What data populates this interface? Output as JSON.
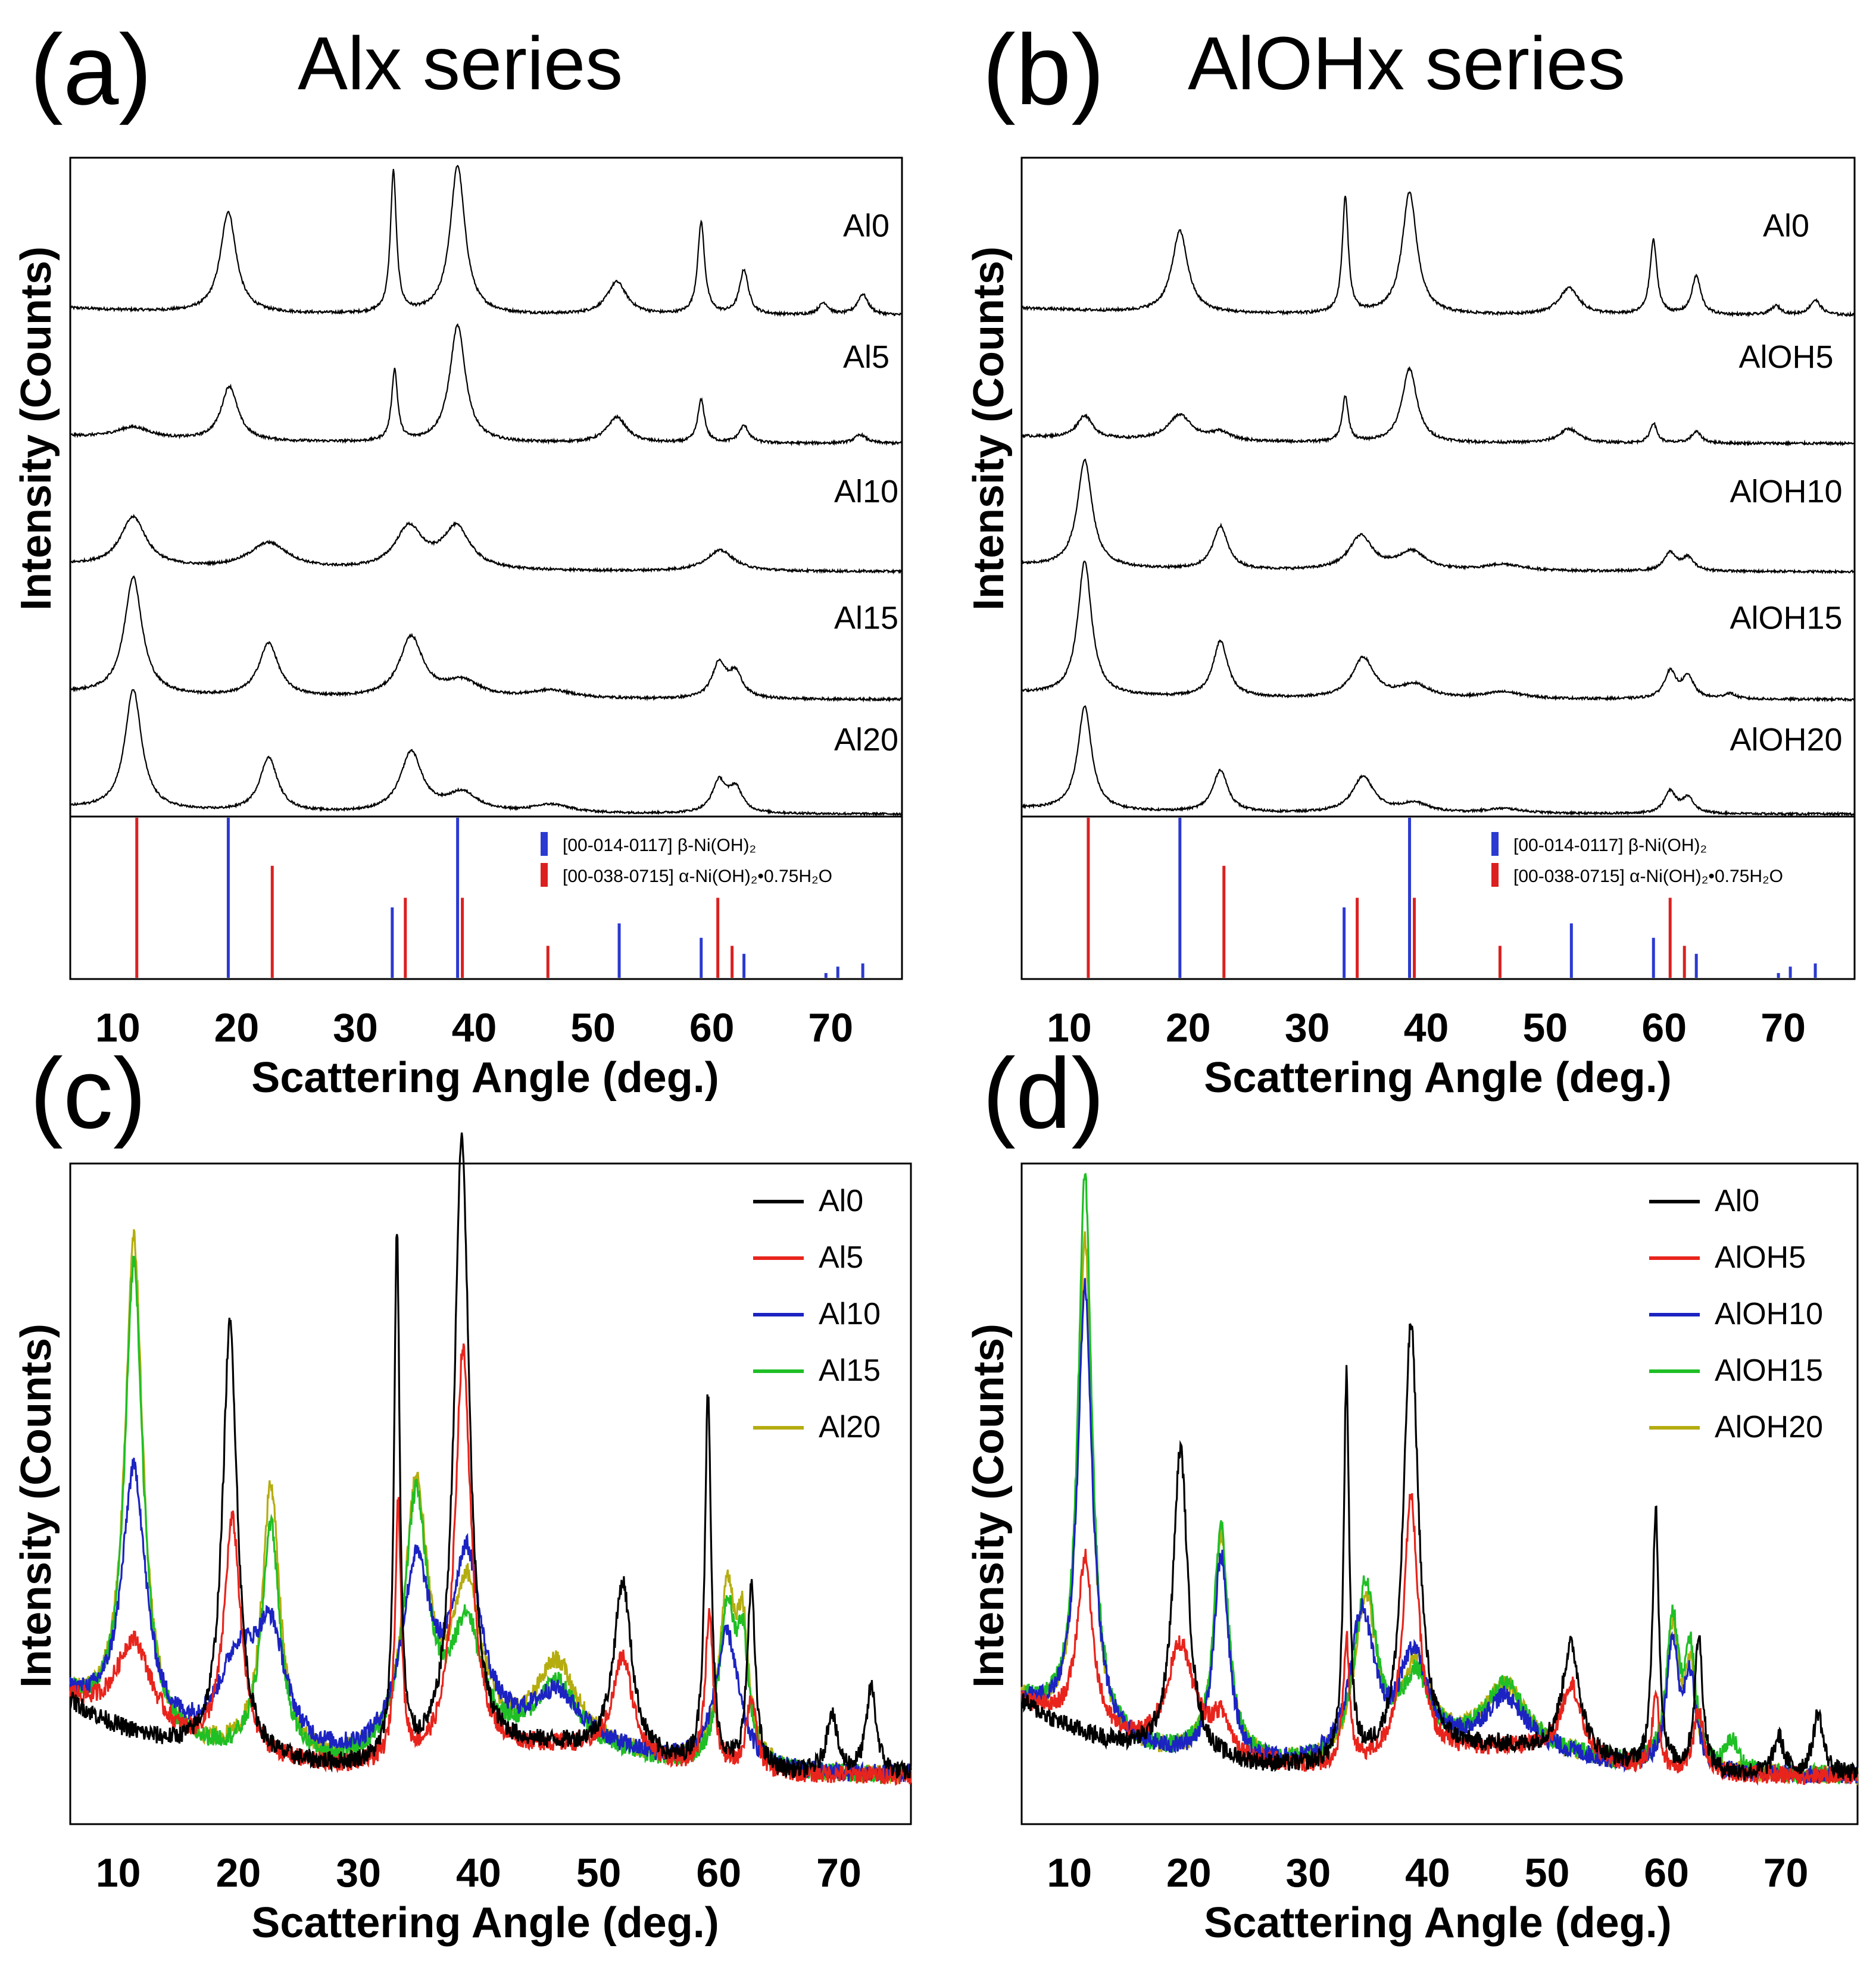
{
  "figure": {
    "panels": [
      {
        "id": "a",
        "letter": "(a)",
        "title": "Alx series"
      },
      {
        "id": "b",
        "letter": "(b)",
        "title": "AlOHx series"
      },
      {
        "id": "c",
        "letter": "(c)",
        "title": ""
      },
      {
        "id": "d",
        "letter": "(d)",
        "title": ""
      }
    ],
    "x_axis_label": "Scattering Angle (deg.)",
    "y_axis_label": "Intensity (Counts)",
    "x_ticks": [
      10,
      20,
      30,
      40,
      50,
      60,
      70
    ],
    "x_range": [
      6,
      76
    ],
    "reference_legend": {
      "beta": "[00-014-0117] β-Ni(OH)₂",
      "alpha": "[00-038-0715] α-Ni(OH)₂•0.75H₂O"
    },
    "colors": {
      "black": "#000000",
      "red": "#e8241c",
      "blue": "#1c23c2",
      "green": "#1fbf25",
      "olive": "#b5ad10",
      "ref_beta": "#2b3ad1",
      "ref_alpha": "#dc2020"
    }
  },
  "chart_data": [
    {
      "id": "a",
      "type": "line",
      "title": "Alx series",
      "xlabel": "Scattering Angle (deg.)",
      "ylabel": "Intensity (Counts)",
      "xlim": [
        6,
        76
      ],
      "layout": "stacked",
      "series": [
        {
          "name": "Al0",
          "baseline": 0.02,
          "peaks": [
            [
              19.3,
              0.68,
              0.8
            ],
            [
              33.2,
              0.95,
              0.3
            ],
            [
              38.6,
              1.0,
              0.75
            ],
            [
              52.0,
              0.22,
              1.0
            ],
            [
              59.1,
              0.62,
              0.35
            ],
            [
              62.7,
              0.3,
              0.45
            ],
            [
              69.4,
              0.08,
              0.5
            ],
            [
              72.7,
              0.14,
              0.55
            ]
          ]
        },
        {
          "name": "Al5",
          "baseline": 0.02,
          "peaks": [
            [
              11.3,
              0.08,
              1.8
            ],
            [
              19.4,
              0.38,
              0.85
            ],
            [
              33.3,
              0.5,
              0.3
            ],
            [
              38.6,
              0.82,
              0.8
            ],
            [
              52.0,
              0.18,
              1.0
            ],
            [
              59.1,
              0.3,
              0.35
            ],
            [
              62.7,
              0.12,
              0.5
            ],
            [
              72.5,
              0.06,
              0.6
            ]
          ]
        },
        {
          "name": "Al10",
          "baseline": 0.02,
          "peaks": [
            [
              11.3,
              0.38,
              1.3
            ],
            [
              22.7,
              0.2,
              2.0
            ],
            [
              34.5,
              0.32,
              1.4
            ],
            [
              38.5,
              0.32,
              1.4
            ],
            [
              60.7,
              0.16,
              1.4
            ]
          ]
        },
        {
          "name": "Al15",
          "baseline": 0.02,
          "peaks": [
            [
              11.3,
              0.88,
              0.9
            ],
            [
              22.7,
              0.4,
              1.0
            ],
            [
              34.7,
              0.45,
              1.2
            ],
            [
              39.0,
              0.12,
              1.8
            ],
            [
              46.5,
              0.06,
              2.2
            ],
            [
              60.6,
              0.26,
              0.7
            ],
            [
              62.0,
              0.18,
              0.7
            ]
          ]
        },
        {
          "name": "Al20",
          "baseline": 0.02,
          "peaks": [
            [
              11.3,
              1.0,
              0.85
            ],
            [
              22.7,
              0.45,
              0.9
            ],
            [
              34.7,
              0.5,
              1.1
            ],
            [
              39.0,
              0.16,
              1.6
            ],
            [
              46.5,
              0.07,
              2.0
            ],
            [
              60.6,
              0.26,
              0.7
            ],
            [
              62.0,
              0.2,
              0.7
            ]
          ]
        }
      ],
      "reference_lines": {
        "beta": [
          [
            19.3,
            1.0
          ],
          [
            33.1,
            0.44
          ],
          [
            38.6,
            1.0
          ],
          [
            52.2,
            0.34
          ],
          [
            59.1,
            0.25
          ],
          [
            62.7,
            0.15
          ],
          [
            69.6,
            0.03
          ],
          [
            70.6,
            0.07
          ],
          [
            72.7,
            0.09
          ]
        ],
        "alpha": [
          [
            11.4,
            1.0
          ],
          [
            22.8,
            0.7
          ],
          [
            34.0,
            0.5
          ],
          [
            38.8,
            0.5
          ],
          [
            46.0,
            0.2
          ],
          [
            60.3,
            0.5
          ],
          [
            61.5,
            0.2
          ]
        ]
      }
    },
    {
      "id": "b",
      "type": "line",
      "title": "AlOHx series",
      "xlabel": "Scattering Angle (deg.)",
      "ylabel": "Intensity (Counts)",
      "xlim": [
        6,
        76
      ],
      "layout": "stacked",
      "series": [
        {
          "name": "Al0",
          "baseline": 0.02,
          "peaks": [
            [
              19.3,
              0.55,
              0.8
            ],
            [
              33.2,
              0.78,
              0.3
            ],
            [
              38.6,
              0.82,
              0.75
            ],
            [
              52.0,
              0.18,
              1.0
            ],
            [
              59.1,
              0.5,
              0.35
            ],
            [
              62.7,
              0.26,
              0.45
            ],
            [
              69.4,
              0.06,
              0.5
            ],
            [
              72.7,
              0.1,
              0.55
            ]
          ]
        },
        {
          "name": "AlOH5",
          "baseline": 0.02,
          "peaks": [
            [
              11.3,
              0.16,
              0.8
            ],
            [
              19.3,
              0.18,
              1.2
            ],
            [
              22.7,
              0.06,
              1.0
            ],
            [
              33.2,
              0.32,
              0.3
            ],
            [
              38.6,
              0.52,
              0.75
            ],
            [
              52.0,
              0.1,
              1.0
            ],
            [
              59.1,
              0.14,
              0.35
            ],
            [
              62.7,
              0.08,
              0.5
            ]
          ]
        },
        {
          "name": "AlOH10",
          "baseline": 0.02,
          "peaks": [
            [
              11.3,
              0.82,
              0.75
            ],
            [
              22.7,
              0.33,
              0.75
            ],
            [
              34.5,
              0.26,
              1.2
            ],
            [
              38.8,
              0.14,
              1.4
            ],
            [
              46.5,
              0.05,
              2.0
            ],
            [
              60.5,
              0.14,
              0.6
            ],
            [
              62.0,
              0.1,
              0.6
            ]
          ]
        },
        {
          "name": "AlOH15",
          "baseline": 0.02,
          "peaks": [
            [
              11.3,
              1.0,
              0.7
            ],
            [
              22.7,
              0.42,
              0.75
            ],
            [
              34.7,
              0.3,
              1.1
            ],
            [
              39.0,
              0.1,
              1.5
            ],
            [
              46.5,
              0.05,
              2.0
            ],
            [
              60.5,
              0.2,
              0.6
            ],
            [
              62.0,
              0.16,
              0.6
            ],
            [
              65.5,
              0.04,
              0.6
            ]
          ]
        },
        {
          "name": "AlOH20",
          "baseline": 0.02,
          "peaks": [
            [
              11.3,
              0.86,
              0.7
            ],
            [
              22.7,
              0.35,
              0.75
            ],
            [
              34.7,
              0.3,
              1.1
            ],
            [
              39.0,
              0.08,
              1.5
            ],
            [
              46.5,
              0.04,
              2.0
            ],
            [
              60.5,
              0.18,
              0.6
            ],
            [
              62.0,
              0.13,
              0.6
            ]
          ]
        }
      ],
      "reference_lines": {
        "beta": [
          [
            19.3,
            1.0
          ],
          [
            33.1,
            0.44
          ],
          [
            38.6,
            1.0
          ],
          [
            52.2,
            0.34
          ],
          [
            59.1,
            0.25
          ],
          [
            62.7,
            0.15
          ],
          [
            69.6,
            0.03
          ],
          [
            70.6,
            0.07
          ],
          [
            72.7,
            0.09
          ]
        ],
        "alpha": [
          [
            11.4,
            1.0
          ],
          [
            22.8,
            0.7
          ],
          [
            34.0,
            0.5
          ],
          [
            38.8,
            0.5
          ],
          [
            46.0,
            0.2
          ],
          [
            60.3,
            0.5
          ],
          [
            61.5,
            0.2
          ]
        ]
      }
    },
    {
      "id": "c",
      "type": "line",
      "xlabel": "Scattering Angle (deg.)",
      "ylabel": "Intensity (Counts)",
      "xlim": [
        6,
        76
      ],
      "ylim": [
        0,
        1
      ],
      "layout": "overlay",
      "series": [
        {
          "name": "Al20",
          "color": "#b5ad10",
          "peaks": [
            [
              11.3,
              0.8,
              0.9
            ],
            [
              22.7,
              0.44,
              0.9
            ],
            [
              34.8,
              0.43,
              1.2
            ],
            [
              39.0,
              0.26,
              1.5
            ],
            [
              46.5,
              0.13,
              2.0
            ],
            [
              60.7,
              0.28,
              0.8
            ],
            [
              62.0,
              0.2,
              0.6
            ]
          ]
        },
        {
          "name": "Al15",
          "color": "#1fbf25",
          "peaks": [
            [
              11.3,
              0.76,
              0.9
            ],
            [
              22.7,
              0.38,
              0.9
            ],
            [
              34.8,
              0.42,
              1.2
            ],
            [
              39.0,
              0.2,
              1.5
            ],
            [
              46.5,
              0.1,
              2.0
            ],
            [
              60.7,
              0.25,
              0.8
            ],
            [
              62.0,
              0.18,
              0.6
            ]
          ]
        },
        {
          "name": "Al10",
          "color": "#1c23c2",
          "peaks": [
            [
              11.3,
              0.42,
              1.2
            ],
            [
              20.0,
              0.14,
              2.0
            ],
            [
              22.7,
              0.18,
              1.5
            ],
            [
              34.8,
              0.3,
              1.5
            ],
            [
              39.0,
              0.3,
              1.5
            ],
            [
              46.5,
              0.08,
              2.5
            ],
            [
              60.7,
              0.22,
              1.2
            ]
          ]
        },
        {
          "name": "Al5",
          "color": "#e8241c",
          "peaks": [
            [
              11.3,
              0.15,
              1.8
            ],
            [
              19.5,
              0.38,
              0.85
            ],
            [
              33.3,
              0.42,
              0.3
            ],
            [
              38.7,
              0.66,
              0.8
            ],
            [
              52.0,
              0.16,
              1.0
            ],
            [
              59.2,
              0.25,
              0.4
            ],
            [
              62.7,
              0.12,
              0.5
            ]
          ]
        },
        {
          "name": "Al0",
          "color": "#000000",
          "peaks": [
            [
              19.3,
              0.7,
              0.75
            ],
            [
              33.2,
              0.85,
              0.28
            ],
            [
              38.6,
              1.0,
              0.75
            ],
            [
              52.0,
              0.28,
              0.9
            ],
            [
              59.1,
              0.6,
              0.32
            ],
            [
              62.7,
              0.3,
              0.4
            ],
            [
              69.4,
              0.1,
              0.5
            ],
            [
              72.7,
              0.14,
              0.5
            ]
          ]
        }
      ]
    },
    {
      "id": "d",
      "type": "line",
      "xlabel": "Scattering Angle (deg.)",
      "ylabel": "Intensity (Counts)",
      "xlim": [
        6,
        76
      ],
      "ylim": [
        0,
        1
      ],
      "layout": "overlay",
      "series": [
        {
          "name": "AlOH20",
          "color": "#b5ad10",
          "peaks": [
            [
              11.3,
              0.8,
              0.7
            ],
            [
              22.7,
              0.36,
              0.75
            ],
            [
              34.8,
              0.26,
              1.1
            ],
            [
              39.0,
              0.14,
              1.5
            ],
            [
              46.5,
              0.1,
              2.0
            ],
            [
              60.5,
              0.22,
              0.6
            ],
            [
              62.0,
              0.16,
              0.6
            ]
          ]
        },
        {
          "name": "AlOH15",
          "color": "#1fbf25",
          "peaks": [
            [
              11.3,
              0.9,
              0.7
            ],
            [
              22.7,
              0.38,
              0.75
            ],
            [
              34.8,
              0.28,
              1.1
            ],
            [
              39.0,
              0.12,
              1.5
            ],
            [
              46.5,
              0.1,
              2.0
            ],
            [
              60.5,
              0.24,
              0.6
            ],
            [
              62.0,
              0.18,
              0.6
            ],
            [
              65.5,
              0.05,
              0.6
            ]
          ]
        },
        {
          "name": "AlOH10",
          "color": "#1c23c2",
          "peaks": [
            [
              11.3,
              0.72,
              0.75
            ],
            [
              22.7,
              0.33,
              0.75
            ],
            [
              34.5,
              0.24,
              1.2
            ],
            [
              38.8,
              0.16,
              1.4
            ],
            [
              46.5,
              0.08,
              2.0
            ],
            [
              60.5,
              0.2,
              0.6
            ],
            [
              62.0,
              0.14,
              0.6
            ]
          ]
        },
        {
          "name": "AlOH5",
          "color": "#e8241c",
          "peaks": [
            [
              11.3,
              0.28,
              0.8
            ],
            [
              19.3,
              0.18,
              1.4
            ],
            [
              22.7,
              0.06,
              1.0
            ],
            [
              33.2,
              0.2,
              0.3
            ],
            [
              38.6,
              0.42,
              0.75
            ],
            [
              52.0,
              0.12,
              1.0
            ],
            [
              59.1,
              0.12,
              0.35
            ],
            [
              62.7,
              0.1,
              0.5
            ]
          ]
        },
        {
          "name": "Al0",
          "color": "#000000",
          "peaks": [
            [
              19.3,
              0.5,
              0.75
            ],
            [
              33.2,
              0.62,
              0.28
            ],
            [
              38.6,
              0.7,
              0.75
            ],
            [
              52.0,
              0.18,
              0.9
            ],
            [
              59.1,
              0.42,
              0.32
            ],
            [
              62.7,
              0.22,
              0.4
            ],
            [
              69.4,
              0.06,
              0.5
            ],
            [
              72.7,
              0.1,
              0.5
            ]
          ]
        }
      ]
    }
  ]
}
